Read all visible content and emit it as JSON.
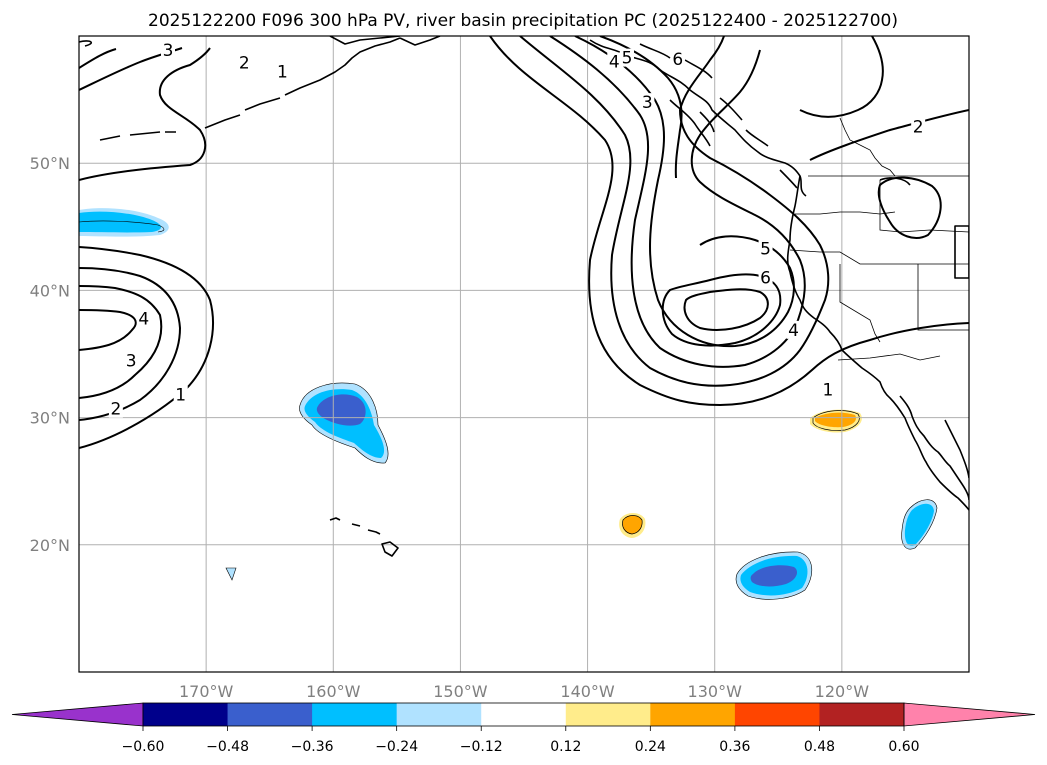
{
  "title": "2025122200 F096 300 hPa PV, river basin precipitation PC (2025122400 - 2025122700)",
  "map": {
    "projection": "PlateCarree",
    "lon_range": [
      -180,
      -110
    ],
    "lat_range": [
      10,
      60
    ],
    "gridlines": true,
    "lat_ticks": [
      {
        "value": 20,
        "label": "20°N"
      },
      {
        "value": 30,
        "label": "30°N"
      },
      {
        "value": 40,
        "label": "40°N"
      },
      {
        "value": 50,
        "label": "50°N"
      }
    ],
    "lon_ticks": [
      {
        "value": -170,
        "label": "170°W"
      },
      {
        "value": -160,
        "label": "160°W"
      },
      {
        "value": -150,
        "label": "150°W"
      },
      {
        "value": -140,
        "label": "140°W"
      },
      {
        "value": -130,
        "label": "130°W"
      },
      {
        "value": -120,
        "label": "120°W"
      }
    ],
    "contour_labels": [
      {
        "text": "3",
        "lon": -173,
        "lat": 58.9
      },
      {
        "text": "2",
        "lon": -167,
        "lat": 57.9
      },
      {
        "text": "1",
        "lon": -164,
        "lat": 57.2
      },
      {
        "text": "4",
        "lon": -174.9,
        "lat": 37.8
      },
      {
        "text": "3",
        "lon": -175.9,
        "lat": 34.5
      },
      {
        "text": "1",
        "lon": -172,
        "lat": 31.8
      },
      {
        "text": "2",
        "lon": -177.1,
        "lat": 30.7
      },
      {
        "text": "4",
        "lon": -137.9,
        "lat": 58.0
      },
      {
        "text": "5",
        "lon": -136.9,
        "lat": 58.3
      },
      {
        "text": "6",
        "lon": -132.9,
        "lat": 58.2
      },
      {
        "text": "3",
        "lon": -135.3,
        "lat": 54.8
      },
      {
        "text": "2",
        "lon": -114,
        "lat": 52.9
      },
      {
        "text": "5",
        "lon": -126,
        "lat": 43.3
      },
      {
        "text": "6",
        "lon": -126,
        "lat": 41.0
      },
      {
        "text": "4",
        "lon": -123.8,
        "lat": 36.9
      },
      {
        "text": "1",
        "lon": -121.1,
        "lat": 32.2
      }
    ],
    "precip_pc_patches": [
      {
        "id": "central-pacific-negative",
        "sign": "negative",
        "center_lon": -160,
        "center_lat": 30,
        "peak": -0.4
      },
      {
        "id": "northwest-negative",
        "sign": "negative",
        "center_lon": -176,
        "center_lat": 45,
        "peak": -0.36
      },
      {
        "id": "south-negative",
        "sign": "negative",
        "center_lon": -125,
        "center_lat": 17.5,
        "peak": -0.4
      },
      {
        "id": "baja-negative",
        "sign": "negative",
        "center_lon": -114,
        "center_lat": 21.5,
        "peak": -0.36
      },
      {
        "id": "south-california-positive",
        "sign": "positive",
        "center_lon": -120,
        "center_lat": 30,
        "peak": 0.3
      },
      {
        "id": "mid-pacific-positive",
        "sign": "positive",
        "center_lon": -136,
        "center_lat": 21.5,
        "peak": 0.3
      },
      {
        "id": "hawaii-small-negative",
        "sign": "negative",
        "center_lon": -168,
        "center_lat": 17.8,
        "peak": -0.2
      }
    ]
  },
  "colorbar": {
    "extend": "both",
    "colors": [
      "#9932cc",
      "#00008b",
      "#3a5fcd",
      "#00bfff",
      "#b0e2ff",
      "#ffffff",
      "#ffec8b",
      "#ffa500",
      "#ff4500",
      "#b22222",
      "#ff82ab"
    ],
    "tick_labels": [
      "−0.60",
      "−0.48",
      "−0.36",
      "−0.24",
      "−0.12",
      "0.12",
      "0.24",
      "0.36",
      "0.48",
      "0.60"
    ]
  },
  "colors": {
    "negative_light": "#b0e2ff",
    "negative_mid": "#00bfff",
    "negative_strong": "#3a5fcd",
    "positive_light": "#ffec8b",
    "positive_mid": "#ffa500"
  }
}
